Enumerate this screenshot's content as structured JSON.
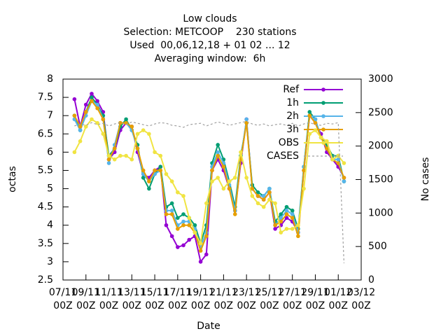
{
  "chart_data": {
    "type": "line",
    "title": [
      "Low clouds",
      "Selection: METCOOP    230 stations",
      "Used  00,06,12,18 + 01 02 ... 12",
      "Averaging window:  6h"
    ],
    "xlabel": "Date",
    "ylabel": "octas",
    "y2label": "No cases",
    "xlim": [
      0,
      26
    ],
    "xticks": [
      {
        "value": 0,
        "label": "07/11 00Z"
      },
      {
        "value": 2,
        "label": "09/11 00Z"
      },
      {
        "value": 4,
        "label": "11/11 00Z"
      },
      {
        "value": 6,
        "label": "13/11 00Z"
      },
      {
        "value": 8,
        "label": "15/11 00Z"
      },
      {
        "value": 10,
        "label": "17/11 00Z"
      },
      {
        "value": 12,
        "label": "19/11 00Z"
      },
      {
        "value": 14,
        "label": "21/11 00Z"
      },
      {
        "value": 16,
        "label": "23/11 00Z"
      },
      {
        "value": 18,
        "label": "25/11 00Z"
      },
      {
        "value": 20,
        "label": "27/11 00Z"
      },
      {
        "value": 22,
        "label": "29/11 00Z"
      },
      {
        "value": 24,
        "label": "01/12 00Z"
      },
      {
        "value": 26,
        "label": "03/12 00Z"
      }
    ],
    "ylim": [
      2.5,
      8
    ],
    "yticks": [
      2.5,
      3,
      3.5,
      4,
      4.5,
      5,
      5.5,
      6,
      6.5,
      7,
      7.5,
      8
    ],
    "y2lim": [
      0,
      3000
    ],
    "y2ticks": [
      0,
      500,
      1000,
      1500,
      2000,
      2500,
      3000
    ],
    "legend": "top-right",
    "x": [
      1,
      1.5,
      2,
      2.5,
      3,
      3.5,
      4,
      4.5,
      5,
      5.5,
      6,
      6.5,
      7,
      7.5,
      8,
      8.5,
      9,
      9.5,
      10,
      10.5,
      11,
      11.5,
      12,
      12.5,
      13,
      13.5,
      14,
      14.5,
      15,
      15.5,
      16,
      16.5,
      17,
      17.5,
      18,
      18.5,
      19,
      19.5,
      20,
      20.5,
      21,
      21.5,
      22,
      22.5,
      23,
      23.5,
      24,
      24.5
    ],
    "series": [
      {
        "name": "Ref",
        "color": "#9400d3",
        "values": [
          7.45,
          6.7,
          7.3,
          7.6,
          7.4,
          7.1,
          5.8,
          6.0,
          6.6,
          6.8,
          6.7,
          6.0,
          5.4,
          5.3,
          5.5,
          5.6,
          4.0,
          3.7,
          3.4,
          3.45,
          3.6,
          3.7,
          3.0,
          3.2,
          5.5,
          5.8,
          5.5,
          5.0,
          4.4,
          5.7,
          6.9,
          5.0,
          4.8,
          4.7,
          4.9,
          3.9,
          4.0,
          4.2,
          4.1,
          3.8,
          5.5,
          7.0,
          6.8,
          6.5,
          6.0,
          5.8,
          5.6,
          5.3
        ]
      },
      {
        "name": "1h",
        "color": "#009e73",
        "values": [
          7.0,
          6.6,
          7.1,
          7.5,
          7.3,
          7.0,
          5.9,
          6.1,
          6.7,
          6.9,
          6.6,
          6.2,
          5.3,
          5.0,
          5.4,
          5.6,
          4.5,
          4.6,
          4.2,
          4.3,
          4.2,
          4.0,
          3.5,
          4.0,
          5.7,
          6.2,
          5.8,
          5.2,
          4.5,
          5.9,
          6.8,
          5.1,
          4.9,
          4.8,
          5.0,
          4.1,
          4.3,
          4.5,
          4.4,
          3.9,
          5.6,
          7.1,
          6.9,
          6.4,
          6.2,
          5.9,
          5.9,
          5.2
        ]
      },
      {
        "name": "2h",
        "color": "#56b4e9",
        "values": [
          6.9,
          6.6,
          7.0,
          7.4,
          7.3,
          6.9,
          5.7,
          6.2,
          6.8,
          6.8,
          6.6,
          6.1,
          5.4,
          5.2,
          5.4,
          5.5,
          4.4,
          4.4,
          4.0,
          4.1,
          4.1,
          3.9,
          3.4,
          3.8,
          5.6,
          6.0,
          5.7,
          5.1,
          4.4,
          5.8,
          6.9,
          5.0,
          4.8,
          4.8,
          5.0,
          4.0,
          4.2,
          4.4,
          4.3,
          3.8,
          5.6,
          7.0,
          6.9,
          6.4,
          6.1,
          5.8,
          5.8,
          5.2
        ]
      },
      {
        "name": "3h",
        "color": "#e69f00",
        "values": [
          7.0,
          6.7,
          7.1,
          7.4,
          7.2,
          6.9,
          5.8,
          6.1,
          6.8,
          6.8,
          6.7,
          6.1,
          5.5,
          5.2,
          5.5,
          5.5,
          4.3,
          4.3,
          3.9,
          4.0,
          4.0,
          3.8,
          3.3,
          3.7,
          5.5,
          5.9,
          5.6,
          5.0,
          4.3,
          5.8,
          6.8,
          5.0,
          4.8,
          4.7,
          4.9,
          4.0,
          4.1,
          4.3,
          4.2,
          3.7,
          5.5,
          7.0,
          6.8,
          6.4,
          6.1,
          5.8,
          5.7,
          5.3
        ]
      },
      {
        "name": "OBS",
        "color": "#f0e442",
        "values": [
          6.0,
          6.3,
          6.7,
          6.9,
          6.8,
          6.5,
          5.9,
          5.8,
          5.9,
          5.9,
          5.8,
          6.5,
          6.6,
          6.5,
          6.0,
          5.9,
          5.4,
          5.2,
          4.9,
          4.8,
          4.2,
          3.8,
          3.5,
          4.6,
          5.2,
          5.3,
          5.0,
          5.2,
          5.3,
          6.0,
          5.3,
          4.8,
          4.6,
          4.5,
          4.7,
          4.6,
          3.8,
          3.9,
          3.9,
          4.0,
          5.0,
          6.5,
          6.6,
          6.4,
          6.3,
          5.8,
          5.9,
          5.7
        ]
      },
      {
        "name": "CASES",
        "color": "#a0a0a0",
        "axis": "y2",
        "dashed": true,
        "values": [
          2300,
          2330,
          2310,
          2350,
          2320,
          2340,
          2300,
          2330,
          2350,
          2320,
          2360,
          2340,
          2320,
          2300,
          2330,
          2350,
          2340,
          2310,
          2300,
          2280,
          2320,
          2330,
          2340,
          2300,
          2330,
          2360,
          2340,
          2310,
          2330,
          2350,
          2370,
          2330,
          2310,
          2330,
          2300,
          2320,
          2330,
          2310,
          2340,
          2300,
          2330,
          2350,
          2320,
          2310,
          2340,
          2330,
          2350,
          250
        ]
      }
    ]
  }
}
